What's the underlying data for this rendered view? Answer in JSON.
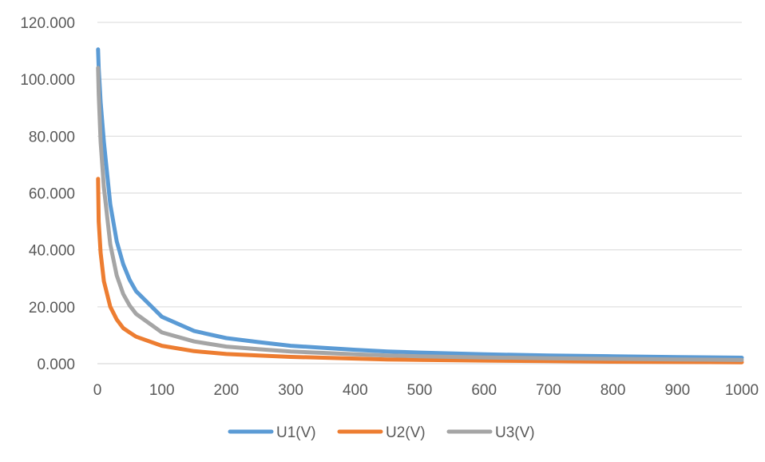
{
  "chart_data": {
    "type": "line",
    "title": "",
    "xlabel": "",
    "ylabel": "",
    "xlim": [
      0,
      1000
    ],
    "ylim": [
      0,
      120
    ],
    "x_ticks": [
      0,
      100,
      200,
      300,
      400,
      500,
      600,
      700,
      800,
      900,
      1000
    ],
    "x_tick_labels": [
      "0",
      "100",
      "200",
      "300",
      "400",
      "500",
      "600",
      "700",
      "800",
      "900",
      "1000"
    ],
    "y_ticks": [
      0,
      20,
      40,
      60,
      80,
      100,
      120
    ],
    "y_tick_labels": [
      "0.000",
      "20.000",
      "40.000",
      "60.000",
      "80.000",
      "100.000",
      "120.000"
    ],
    "grid": true,
    "legend_position": "bottom",
    "x": [
      1,
      2,
      5,
      10,
      20,
      30,
      40,
      50,
      60,
      100,
      150,
      200,
      250,
      300,
      350,
      400,
      450,
      500,
      600,
      700,
      800,
      900,
      1000
    ],
    "series": [
      {
        "name": "U1(V)",
        "color": "#5b9bd5",
        "values": [
          110.5,
          104,
          92,
          78,
          56,
          43,
          35,
          29.5,
          25.5,
          16.5,
          11.5,
          9,
          7.6,
          6.3,
          5.6,
          4.9,
          4.3,
          3.9,
          3.3,
          2.9,
          2.6,
          2.3,
          2.1
        ]
      },
      {
        "name": "U2(V)",
        "color": "#ed7d31",
        "values": [
          65,
          50,
          39,
          29,
          20,
          15.5,
          12.5,
          11,
          9.5,
          6.3,
          4.4,
          3.4,
          2.9,
          2.4,
          2.1,
          1.8,
          1.5,
          1.35,
          1.1,
          0.9,
          0.7,
          0.6,
          0.5
        ]
      },
      {
        "name": "U3(V)",
        "color": "#a5a5a5",
        "values": [
          104,
          95,
          78,
          62,
          42,
          31,
          24.5,
          20.5,
          17.5,
          11,
          7.8,
          6,
          5.1,
          4.3,
          3.8,
          3.3,
          2.9,
          2.6,
          2.2,
          1.9,
          1.7,
          1.5,
          1.3
        ]
      }
    ]
  }
}
